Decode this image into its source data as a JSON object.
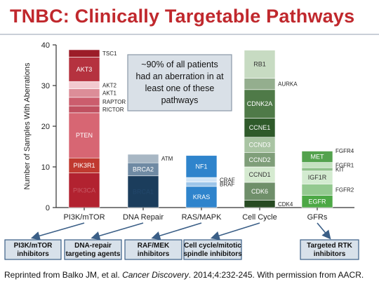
{
  "title": "TNBC: Clinically Targetable Pathways",
  "citation": {
    "prefix": "Reprinted from Balko JM, et al. ",
    "journal": "Cancer Discovery",
    "suffix": ". 2014;4:232-245. With permission from AACR."
  },
  "callout": [
    "~90% of all patients",
    "had an aberration in at",
    "least one of these",
    "pathways"
  ],
  "colors": {
    "title": "#c0282d",
    "callout_fill": "#d9e0e7",
    "callout_border": "#8a98a8",
    "target_box_fill": "#d8e1ea",
    "target_box_border": "#3b5f87",
    "arrow": "#3b5f87"
  },
  "chart_data": {
    "type": "bar",
    "stacked": true,
    "ylabel": "Number of Samples With Aberrations",
    "ylim": [
      0,
      40
    ],
    "yticks": [
      0,
      10,
      20,
      30,
      40
    ],
    "categories": [
      "PI3K/mTOR",
      "DNA Repair",
      "RAS/MAPK",
      "Cell Cycle",
      "GFRs"
    ],
    "stacks": [
      {
        "category": "PI3K/mTOR",
        "segments": [
          {
            "label": "PIK3CA",
            "from": 0,
            "to": 8.5,
            "color": "#b22230",
            "inside": true,
            "text_color": "#c85a66"
          },
          {
            "label": "PIK3R1",
            "from": 8.5,
            "to": 12.2,
            "color": "#c0392f",
            "inside": true,
            "text_color": "#ffffff"
          },
          {
            "label": "PTEN",
            "from": 12.2,
            "to": 23.3,
            "color": "#d76673",
            "inside": true,
            "text_color": "#ffffff"
          },
          {
            "label": "RICTOR",
            "from": 23.3,
            "to": 25.0,
            "color": "#c05060",
            "inside": false,
            "text_color": "#222222"
          },
          {
            "label": "RAPTOR",
            "from": 25.0,
            "to": 27.1,
            "color": "#cb5d6d",
            "inside": false,
            "text_color": "#222222"
          },
          {
            "label": "AKT1",
            "from": 27.1,
            "to": 29.2,
            "color": "#dc8d98",
            "inside": false,
            "text_color": "#222222"
          },
          {
            "label": "AKT2",
            "from": 29.2,
            "to": 31.0,
            "color": "#f2c9cf",
            "inside": false,
            "text_color": "#222222"
          },
          {
            "label": "AKT3",
            "from": 31.0,
            "to": 37.0,
            "color": "#b5323f",
            "inside": true,
            "text_color": "#ffffff"
          },
          {
            "label": "TSC1",
            "from": 37.0,
            "to": 38.8,
            "color": "#9c1c28",
            "inside": false,
            "text_color": "#222222"
          }
        ]
      },
      {
        "category": "DNA Repair",
        "segments": [
          {
            "label": "BRCA1",
            "from": 0,
            "to": 7.8,
            "color": "#1b3d5c",
            "inside": true,
            "text_color": "#22476b"
          },
          {
            "label": "BRCA2",
            "from": 7.8,
            "to": 11.0,
            "color": "#6f8aa3",
            "inside": true,
            "text_color": "#ffffff"
          },
          {
            "label": "ATM",
            "from": 11.0,
            "to": 13.1,
            "color": "#a8b7c4",
            "inside": false,
            "text_color": "#222222"
          }
        ]
      },
      {
        "category": "RAS/MAPK",
        "segments": [
          {
            "label": "KRAS",
            "from": 0,
            "to": 5.2,
            "color": "#2f84cc",
            "inside": true,
            "text_color": "#ffffff"
          },
          {
            "label": "BRAF",
            "from": 5.2,
            "to": 6.3,
            "color": "#9dc6ea",
            "inside": false,
            "text_color": "#222222"
          },
          {
            "label": "CRAF",
            "from": 6.3,
            "to": 7.4,
            "color": "#cfe4f6",
            "inside": false,
            "text_color": "#222222"
          },
          {
            "label": "NF1",
            "from": 7.4,
            "to": 12.8,
            "color": "#2f84cc",
            "inside": true,
            "text_color": "#ffffff"
          }
        ]
      },
      {
        "category": "Cell Cycle",
        "segments": [
          {
            "label": "CDK4",
            "from": 0,
            "to": 1.8,
            "color": "#274a22",
            "inside": false,
            "text_color": "#222222"
          },
          {
            "label": "CDK6",
            "from": 1.8,
            "to": 6.2,
            "color": "#6f8f6a",
            "inside": true,
            "text_color": "#ffffff"
          },
          {
            "label": "CCND1",
            "from": 6.2,
            "to": 10.0,
            "color": "#d5ead0",
            "inside": true,
            "text_color": "#333333"
          },
          {
            "label": "CCND2",
            "from": 10.0,
            "to": 13.5,
            "color": "#7f9e79",
            "inside": true,
            "text_color": "#ffffff"
          },
          {
            "label": "CCND3",
            "from": 13.5,
            "to": 17.3,
            "color": "#a9c4a3",
            "inside": true,
            "text_color": "#ffffff"
          },
          {
            "label": "CCNE1",
            "from": 17.3,
            "to": 22.0,
            "color": "#2f5a2a",
            "inside": true,
            "text_color": "#ffffff"
          },
          {
            "label": "CDNK2A",
            "from": 22.0,
            "to": 29.0,
            "color": "#4f7a48",
            "inside": true,
            "text_color": "#ffffff"
          },
          {
            "label": "AURKA",
            "from": 29.0,
            "to": 31.8,
            "color": "#94ae8e",
            "inside": false,
            "text_color": "#222222"
          },
          {
            "label": "RB1",
            "from": 31.8,
            "to": 38.7,
            "color": "#c7dbc2",
            "inside": true,
            "text_color": "#333333"
          }
        ]
      },
      {
        "category": "GFRs",
        "segments": [
          {
            "label": "EGFR",
            "from": 0,
            "to": 3.0,
            "color": "#4ca845",
            "inside": true,
            "text_color": "#ffffff"
          },
          {
            "label": "FGFR2",
            "from": 3.0,
            "to": 5.8,
            "color": "#93c98f",
            "inside": false,
            "text_color": "#222222"
          },
          {
            "label": "IGF1R",
            "from": 5.8,
            "to": 9.0,
            "color": "#d3ebd0",
            "inside": true,
            "text_color": "#333333"
          },
          {
            "label": "KIT",
            "from": 9.0,
            "to": 9.8,
            "color": "#8fc18a",
            "inside": false,
            "text_color": "#222222"
          },
          {
            "label": "FGFR1",
            "from": 9.8,
            "to": 11.1,
            "color": "#c4e2c0",
            "inside": false,
            "text_color": "#222222"
          },
          {
            "label": "MET",
            "from": 11.1,
            "to": 13.9,
            "color": "#53a24d",
            "inside": true,
            "text_color": "#ffffff"
          },
          {
            "label": "FGFR4",
            "from": 13.9,
            "to": 14.0,
            "color": "#3d8a38",
            "inside": false,
            "text_color": "#222222"
          }
        ]
      }
    ],
    "targets": [
      [
        "PI3K/mTOR",
        "inhibitors"
      ],
      [
        "DNA-repair",
        "targeting agents"
      ],
      [
        "RAF/MEK",
        "inhibitors"
      ],
      [
        "Cell cycle/mitotic",
        "spindle inhibitors"
      ],
      [
        "Targeted RTK",
        "inhibitors"
      ]
    ]
  }
}
